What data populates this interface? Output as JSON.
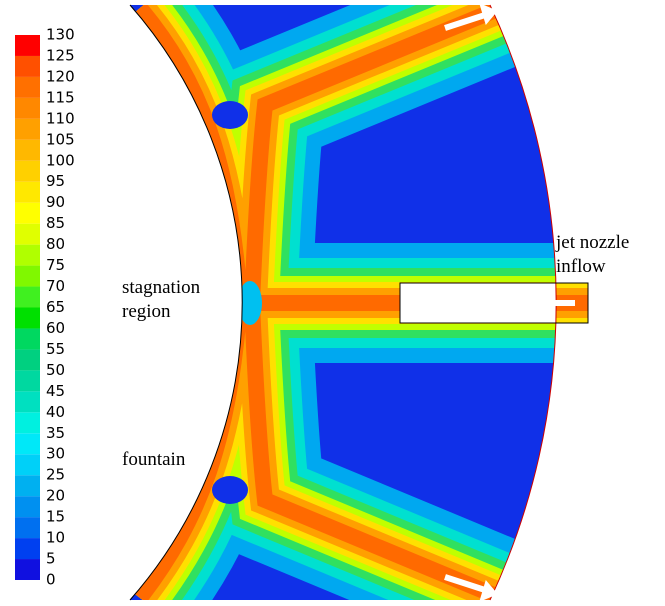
{
  "chart_data": {
    "type": "contour",
    "annotations": [
      {
        "lines": [
          "jet nozzle",
          "inflow"
        ]
      },
      {
        "lines": [
          "stagnation",
          "region"
        ]
      },
      {
        "lines": [
          "fountain"
        ]
      }
    ],
    "colorbar": {
      "ticks": [
        0,
        5,
        10,
        15,
        20,
        25,
        30,
        35,
        40,
        45,
        50,
        55,
        60,
        65,
        70,
        75,
        80,
        85,
        90,
        95,
        100,
        105,
        110,
        115,
        120,
        125,
        130
      ],
      "colors": [
        "#1010e0",
        "#0040f0",
        "#0070f0",
        "#0090f0",
        "#00b0f0",
        "#00d0f8",
        "#00e8f8",
        "#00f0e0",
        "#00e0c0",
        "#00d8a0",
        "#00d080",
        "#00d860",
        "#00e000",
        "#40f020",
        "#80f800",
        "#b0ff00",
        "#e0ff00",
        "#ffff00",
        "#ffe800",
        "#ffd000",
        "#ffb800",
        "#ffa000",
        "#ff8800",
        "#ff7000",
        "#ff5000",
        "#ff0000"
      ]
    }
  }
}
